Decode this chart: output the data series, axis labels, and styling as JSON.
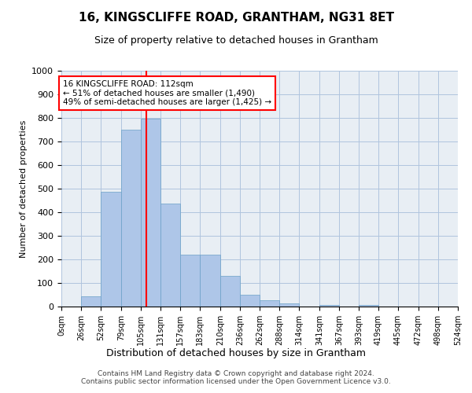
{
  "title": "16, KINGSCLIFFE ROAD, GRANTHAM, NG31 8ET",
  "subtitle": "Size of property relative to detached houses in Grantham",
  "xlabel": "Distribution of detached houses by size in Grantham",
  "ylabel": "Number of detached properties",
  "bins": [
    0,
    26,
    52,
    79,
    105,
    131,
    157,
    183,
    210,
    236,
    262,
    288,
    314,
    341,
    367,
    393,
    419,
    445,
    472,
    498,
    524
  ],
  "heights": [
    0,
    42,
    487,
    750,
    797,
    437,
    219,
    219,
    129,
    50,
    27,
    14,
    0,
    6,
    0,
    8,
    0,
    0,
    0,
    0
  ],
  "x_labels": [
    "0sqm",
    "26sqm",
    "52sqm",
    "79sqm",
    "105sqm",
    "131sqm",
    "157sqm",
    "183sqm",
    "210sqm",
    "236sqm",
    "262sqm",
    "288sqm",
    "314sqm",
    "341sqm",
    "367sqm",
    "393sqm",
    "419sqm",
    "445sqm",
    "472sqm",
    "498sqm",
    "524sqm"
  ],
  "bar_color": "#aec6e8",
  "bar_edge_color": "#6aa0c7",
  "vline_x": 112,
  "vline_color": "#ff0000",
  "annotation_text": "16 KINGSCLIFFE ROAD: 112sqm\n← 51% of detached houses are smaller (1,490)\n49% of semi-detached houses are larger (1,425) →",
  "annotation_box_color": "#ffffff",
  "annotation_box_edge": "#ff0000",
  "grid_color": "#b0c4de",
  "background_color": "#e8eef4",
  "ylim": [
    0,
    1000
  ],
  "yticks": [
    0,
    100,
    200,
    300,
    400,
    500,
    600,
    700,
    800,
    900,
    1000
  ],
  "footer_text": "Contains HM Land Registry data © Crown copyright and database right 2024.\nContains public sector information licensed under the Open Government Licence v3.0."
}
